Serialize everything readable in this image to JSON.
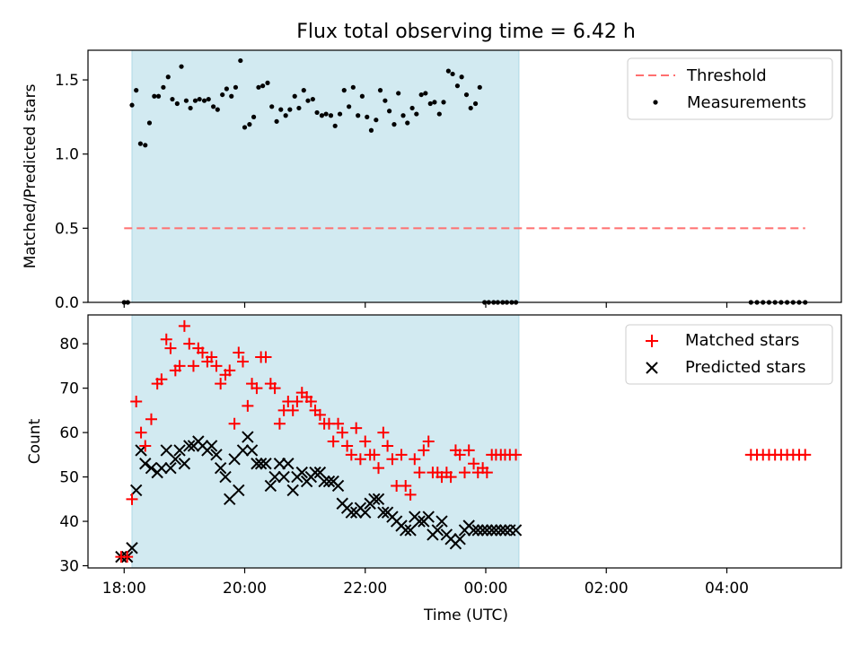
{
  "chart_data": {
    "title": "Flux total observing time = 6.42 h",
    "xlabel": "Time (UTC)",
    "x_unit": "hours since 18:00 UTC",
    "xlim": [
      -0.6,
      11.9
    ],
    "x_ticks": [
      {
        "value": 0,
        "label": "18:00"
      },
      {
        "value": 2,
        "label": "20:00"
      },
      {
        "value": 4,
        "label": "22:00"
      },
      {
        "value": 6,
        "label": "00:00"
      },
      {
        "value": 8,
        "label": "02:00"
      },
      {
        "value": 10,
        "label": "04:00"
      }
    ],
    "colors": {
      "span": "#add8e6",
      "threshold": "#ff6f6f",
      "measurements": "#000000",
      "matched": "#ff0000",
      "predicted": "#000000"
    },
    "observing_span": [
      0.13,
      6.55
    ],
    "top": {
      "type": "scatter",
      "ylabel": "Matched/Predicted stars",
      "ylim": [
        0,
        1.7
      ],
      "y_ticks": [
        0.0,
        0.5,
        1.0,
        1.5
      ],
      "threshold": {
        "name": "Threshold",
        "y": 0.5,
        "x_range": [
          0,
          11.3
        ]
      },
      "legend": [
        "Threshold",
        "Measurements"
      ],
      "measurements": {
        "name": "Measurements",
        "x": [
          0,
          0.06,
          0.13,
          0.2,
          0.27,
          0.35,
          0.42,
          0.5,
          0.57,
          0.65,
          0.73,
          0.8,
          0.88,
          0.95,
          1.03,
          1.1,
          1.18,
          1.25,
          1.33,
          1.4,
          1.48,
          1.55,
          1.63,
          1.7,
          1.78,
          1.85,
          1.93,
          2.0,
          2.08,
          2.15,
          2.23,
          2.3,
          2.38,
          2.45,
          2.53,
          2.6,
          2.68,
          2.75,
          2.83,
          2.9,
          2.98,
          3.05,
          3.13,
          3.2,
          3.28,
          3.35,
          3.43,
          3.5,
          3.58,
          3.65,
          3.73,
          3.8,
          3.88,
          3.95,
          4.03,
          4.1,
          4.18,
          4.25,
          4.33,
          4.4,
          4.48,
          4.55,
          4.63,
          4.7,
          4.78,
          4.85,
          4.93,
          5.0,
          5.08,
          5.15,
          5.23,
          5.3,
          5.38,
          5.45,
          5.53,
          5.6,
          5.68,
          5.75,
          5.83,
          5.9,
          5.98,
          6.05,
          6.13,
          6.2,
          6.28,
          6.35,
          6.43,
          6.5,
          10.4,
          10.5,
          10.6,
          10.7,
          10.8,
          10.9,
          11.0,
          11.1,
          11.2,
          11.3
        ],
        "y": [
          0.0,
          0.0,
          1.33,
          1.43,
          1.07,
          1.06,
          1.21,
          1.39,
          1.39,
          1.45,
          1.52,
          1.37,
          1.34,
          1.59,
          1.36,
          1.31,
          1.36,
          1.37,
          1.36,
          1.37,
          1.32,
          1.3,
          1.4,
          1.44,
          1.39,
          1.45,
          1.63,
          1.18,
          1.2,
          1.25,
          1.45,
          1.46,
          1.48,
          1.32,
          1.22,
          1.3,
          1.26,
          1.3,
          1.39,
          1.31,
          1.43,
          1.36,
          1.37,
          1.28,
          1.26,
          1.27,
          1.26,
          1.19,
          1.27,
          1.43,
          1.32,
          1.45,
          1.26,
          1.39,
          1.25,
          1.16,
          1.23,
          1.43,
          1.36,
          1.29,
          1.2,
          1.41,
          1.26,
          1.21,
          1.31,
          1.27,
          1.4,
          1.41,
          1.34,
          1.35,
          1.27,
          1.35,
          1.56,
          1.54,
          1.46,
          1.52,
          1.4,
          1.31,
          1.34,
          1.45,
          0.0,
          0.0,
          0.0,
          0.0,
          0.0,
          0.0,
          0.0,
          0.0,
          0.0,
          0.0,
          0.0,
          0.0,
          0.0,
          0.0,
          0.0,
          0.0,
          0.0,
          0.0
        ]
      }
    },
    "bottom": {
      "type": "scatter",
      "ylabel": "Count",
      "ylim": [
        29.5,
        86.5
      ],
      "y_ticks": [
        30,
        40,
        50,
        60,
        70,
        80
      ],
      "legend": [
        "Matched stars",
        "Predicted stars"
      ],
      "series": [
        {
          "name": "Matched stars",
          "marker": "+",
          "x": [
            -0.05,
            0.05,
            0.13,
            0.2,
            0.28,
            0.35,
            0.45,
            0.55,
            0.62,
            0.7,
            0.77,
            0.85,
            0.92,
            1.0,
            1.08,
            1.15,
            1.23,
            1.3,
            1.38,
            1.45,
            1.53,
            1.6,
            1.68,
            1.75,
            1.83,
            1.9,
            1.97,
            2.05,
            2.12,
            2.2,
            2.27,
            2.35,
            2.43,
            2.5,
            2.58,
            2.65,
            2.72,
            2.8,
            2.87,
            2.95,
            3.03,
            3.1,
            3.17,
            3.25,
            3.32,
            3.4,
            3.47,
            3.55,
            3.62,
            3.7,
            3.77,
            3.85,
            3.92,
            4.0,
            4.08,
            4.15,
            4.22,
            4.3,
            4.37,
            4.45,
            4.52,
            4.6,
            4.67,
            4.75,
            4.82,
            4.9,
            4.97,
            5.05,
            5.12,
            5.2,
            5.27,
            5.35,
            5.42,
            5.5,
            5.57,
            5.65,
            5.72,
            5.8,
            5.87,
            5.95,
            6.02,
            6.1,
            6.17,
            6.25,
            6.32,
            6.4,
            6.5,
            10.4,
            10.5,
            10.6,
            10.7,
            10.8,
            10.9,
            11.0,
            11.1,
            11.2,
            11.3
          ],
          "y": [
            32,
            32,
            45,
            67,
            60,
            57,
            63,
            71,
            72,
            81,
            79,
            74,
            75,
            84,
            80,
            75,
            79,
            78,
            76,
            77,
            75,
            71,
            73,
            74,
            62,
            78,
            76,
            66,
            71,
            70,
            77,
            77,
            71,
            70,
            62,
            65,
            67,
            65,
            67,
            69,
            68,
            67,
            65,
            64,
            62,
            62,
            58,
            62,
            60,
            57,
            55,
            61,
            54,
            58,
            55,
            55,
            52,
            60,
            57,
            54,
            48,
            55,
            48,
            46,
            54,
            51,
            56,
            58,
            51,
            51,
            50,
            51,
            50,
            56,
            55,
            51,
            56,
            53,
            51,
            52,
            51,
            55,
            55,
            55,
            55,
            55,
            55,
            55,
            55,
            55,
            55,
            55,
            55,
            55,
            55,
            55,
            55
          ],
          "x_fix": true
        },
        {
          "name": "Predicted stars",
          "marker": "x",
          "x": [
            -0.05,
            0.05,
            0.13,
            0.2,
            0.28,
            0.35,
            0.45,
            0.55,
            0.62,
            0.7,
            0.77,
            0.85,
            0.92,
            1.0,
            1.08,
            1.15,
            1.23,
            1.3,
            1.38,
            1.45,
            1.53,
            1.6,
            1.68,
            1.75,
            1.83,
            1.9,
            1.97,
            2.05,
            2.12,
            2.2,
            2.27,
            2.35,
            2.43,
            2.5,
            2.58,
            2.65,
            2.72,
            2.8,
            2.87,
            2.95,
            3.03,
            3.1,
            3.17,
            3.25,
            3.32,
            3.4,
            3.47,
            3.55,
            3.62,
            3.7,
            3.77,
            3.85,
            3.92,
            4.0,
            4.08,
            4.15,
            4.22,
            4.3,
            4.37,
            4.45,
            4.52,
            4.6,
            4.67,
            4.75,
            4.82,
            4.9,
            4.97,
            5.05,
            5.12,
            5.2,
            5.27,
            5.35,
            5.42,
            5.5,
            5.57,
            5.65,
            5.72,
            5.8,
            5.87,
            5.95,
            6.02,
            6.1,
            6.17,
            6.25,
            6.32,
            6.4,
            6.5
          ],
          "y": [
            32,
            32,
            34,
            47,
            56,
            53,
            52,
            51,
            52,
            56,
            52,
            54,
            56,
            53,
            57,
            57,
            58,
            57,
            56,
            57,
            55,
            52,
            50,
            45,
            54,
            47,
            56,
            59,
            56,
            53,
            53,
            53,
            48,
            50,
            53,
            50,
            53,
            47,
            50,
            51,
            49,
            50,
            51,
            51,
            49,
            49,
            49,
            48,
            44,
            43,
            42,
            42,
            43,
            42,
            44,
            45,
            45,
            42,
            42,
            41,
            40,
            39,
            38,
            38,
            41,
            40,
            40,
            41,
            37,
            38,
            40,
            37,
            36,
            35,
            36,
            38,
            39,
            38,
            38,
            38,
            38,
            38,
            38,
            38,
            38,
            38,
            38
          ]
        }
      ]
    }
  }
}
